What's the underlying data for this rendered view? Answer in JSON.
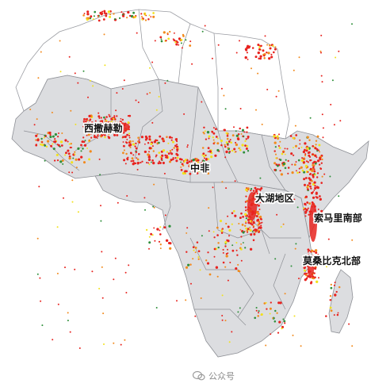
{
  "labels": {
    "western_sahel": "西撒赫勒",
    "central_africa": "中非",
    "great_lakes": "大湖地区",
    "southern_somalia": "索马里南部",
    "northern_mozambique": "莫桑比克北部"
  },
  "watermark": {
    "text": "公众号",
    "icon": "wechat-official-account-icon"
  },
  "colors": {
    "land": "#dcdde0",
    "north_land": "#ffffff",
    "border": "#8e9096",
    "event_red": "#e8231f",
    "event_orange": "#f28a1c",
    "event_yellow": "#f2e21c",
    "event_green": "#2f8f3a"
  },
  "hotspots": [
    {
      "region": "western_sahel",
      "color": "event_red"
    },
    {
      "region": "central_africa",
      "color": "event_red"
    },
    {
      "region": "great_lakes",
      "color": "event_red"
    },
    {
      "region": "southern_somalia",
      "color": "event_red"
    },
    {
      "region": "northern_mozambique",
      "color": "event_red"
    }
  ]
}
